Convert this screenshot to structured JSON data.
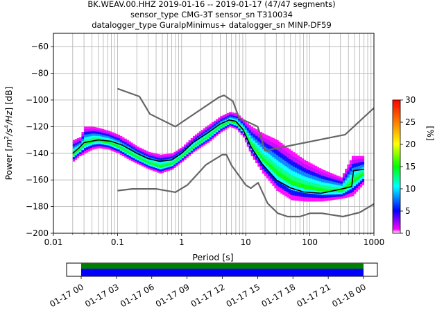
{
  "chart_data": {
    "type": "heatmap",
    "title_lines": [
      "BK.WEAV.00.HHZ   2019-01-16 -- 2019-01-17  (47/47 segments)",
      "sensor_type CMG-3T sensor_sn T310034",
      "datalogger_type GuralpMinimus+ datalogger_sn MINP-DF59"
    ],
    "xlabel": "Period [s]",
    "ylabel_prefix": "Power [",
    "ylabel_unit_m": "m",
    "ylabel_unit_exp2": "2",
    "ylabel_unit_s": "/s",
    "ylabel_unit_exp4": "4",
    "ylabel_unit_hz": "/Hz",
    "ylabel_suffix": "] [dB]",
    "x_scale": "log",
    "xlim": [
      0.01,
      1000
    ],
    "ylim": [
      -200,
      -50
    ],
    "x_ticks": [
      {
        "value": 0.01,
        "label": "0.01"
      },
      {
        "value": 0.1,
        "label": "0.1"
      },
      {
        "value": 1,
        "label": "1"
      },
      {
        "value": 10,
        "label": "10"
      },
      {
        "value": 100,
        "label": "100"
      },
      {
        "value": 1000,
        "label": "1000"
      }
    ],
    "y_ticks": [
      {
        "value": -60,
        "label": "−60"
      },
      {
        "value": -80,
        "label": "−80"
      },
      {
        "value": -100,
        "label": "−100"
      },
      {
        "value": -120,
        "label": "−120"
      },
      {
        "value": -140,
        "label": "−140"
      },
      {
        "value": -160,
        "label": "−160"
      },
      {
        "value": -180,
        "label": "−180"
      },
      {
        "value": -200,
        "label": "−200"
      }
    ],
    "grid": true,
    "colorbar": {
      "label": "[%]",
      "min": 0,
      "max": 30,
      "ticks": [
        {
          "value": 0,
          "label": "0"
        },
        {
          "value": 5,
          "label": "5"
        },
        {
          "value": 10,
          "label": "10"
        },
        {
          "value": 15,
          "label": "15"
        },
        {
          "value": 20,
          "label": "20"
        },
        {
          "value": 25,
          "label": "25"
        },
        {
          "value": 30,
          "label": "30"
        }
      ]
    },
    "high_noise_model": [
      [
        0.1,
        -91.5
      ],
      [
        0.22,
        -97.4
      ],
      [
        0.32,
        -110.5
      ],
      [
        0.8,
        -120
      ],
      [
        3.8,
        -98
      ],
      [
        4.6,
        -96.5
      ],
      [
        6.3,
        -101
      ],
      [
        7.9,
        -113.5
      ],
      [
        15.4,
        -120
      ],
      [
        20,
        -138
      ],
      [
        354.8,
        -126
      ],
      [
        1000,
        -106
      ]
    ],
    "low_noise_model": [
      [
        0.1,
        -168
      ],
      [
        0.17,
        -166.7
      ],
      [
        0.4,
        -166.7
      ],
      [
        0.8,
        -169.2
      ],
      [
        1.24,
        -163.7
      ],
      [
        2.4,
        -148.6
      ],
      [
        4.3,
        -141.1
      ],
      [
        5,
        -141.1
      ],
      [
        6,
        -149
      ],
      [
        10,
        -163.8
      ],
      [
        12,
        -166.2
      ],
      [
        15.6,
        -162.1
      ],
      [
        21.9,
        -177.5
      ],
      [
        31.6,
        -185
      ],
      [
        45,
        -187.5
      ],
      [
        70,
        -187.5
      ],
      [
        101,
        -185
      ],
      [
        154,
        -185
      ],
      [
        328,
        -187.5
      ],
      [
        600,
        -184.4
      ],
      [
        1000,
        -178
      ]
    ],
    "mean_curve": [
      [
        0.02,
        -140
      ],
      [
        0.025,
        -136
      ],
      [
        0.03,
        -132
      ],
      [
        0.05,
        -130
      ],
      [
        0.08,
        -131
      ],
      [
        0.12,
        -134
      ],
      [
        0.2,
        -140
      ],
      [
        0.3,
        -144
      ],
      [
        0.45,
        -146
      ],
      [
        0.7,
        -145
      ],
      [
        1,
        -140
      ],
      [
        1.5,
        -132
      ],
      [
        2.5,
        -125
      ],
      [
        4,
        -118
      ],
      [
        5.5,
        -115
      ],
      [
        7,
        -116
      ],
      [
        9,
        -122
      ],
      [
        12,
        -135
      ],
      [
        18,
        -148
      ],
      [
        30,
        -160
      ],
      [
        50,
        -166
      ],
      [
        80,
        -169
      ],
      [
        150,
        -170
      ],
      [
        300,
        -167
      ],
      [
        450,
        -165
      ],
      [
        480,
        -153
      ],
      [
        700,
        -152
      ]
    ],
    "density_columns": [
      {
        "period": 0.02,
        "min": -146,
        "max": -130
      },
      {
        "period": 0.025,
        "min": -142,
        "max": -128
      },
      {
        "period": 0.03,
        "min": -140,
        "max": -120
      },
      {
        "period": 0.04,
        "min": -137,
        "max": -120
      },
      {
        "period": 0.05,
        "min": -136,
        "max": -121
      },
      {
        "period": 0.07,
        "min": -137,
        "max": -123
      },
      {
        "period": 0.1,
        "min": -140,
        "max": -126
      },
      {
        "period": 0.15,
        "min": -145,
        "max": -131
      },
      {
        "period": 0.2,
        "min": -148,
        "max": -135
      },
      {
        "period": 0.3,
        "min": -152,
        "max": -139
      },
      {
        "period": 0.45,
        "min": -155,
        "max": -141
      },
      {
        "period": 0.7,
        "min": -152,
        "max": -140
      },
      {
        "period": 1,
        "min": -146,
        "max": -135
      },
      {
        "period": 1.5,
        "min": -139,
        "max": -127
      },
      {
        "period": 2.5,
        "min": -132,
        "max": -119
      },
      {
        "period": 4,
        "min": -124,
        "max": -112
      },
      {
        "period": 5.5,
        "min": -120,
        "max": -109
      },
      {
        "period": 7,
        "min": -122,
        "max": -110
      },
      {
        "period": 9,
        "min": -128,
        "max": -115
      },
      {
        "period": 12,
        "min": -142,
        "max": -120
      },
      {
        "period": 18,
        "min": -155,
        "max": -125
      },
      {
        "period": 30,
        "min": -168,
        "max": -130
      },
      {
        "period": 50,
        "min": -175,
        "max": -138
      },
      {
        "period": 80,
        "min": -176,
        "max": -145
      },
      {
        "period": 150,
        "min": -176,
        "max": -152
      },
      {
        "period": 300,
        "min": -174,
        "max": -158
      },
      {
        "period": 450,
        "min": -172,
        "max": -142
      },
      {
        "period": 700,
        "min": -162,
        "max": -142
      }
    ],
    "timeline": {
      "start": "2019-01-16 21:50",
      "end": "2019-01-18 02:00",
      "covered_start": "01-17 00",
      "covered_end": "01-18 00",
      "ticks": [
        "01-17 00",
        "01-17 03",
        "01-17 06",
        "01-17 09",
        "01-17 12",
        "01-17 15",
        "01-17 18",
        "01-17 21",
        "01-18 00"
      ],
      "band_colors": [
        "#008000",
        "#0000ff"
      ]
    },
    "colors": {
      "noise_model": "#666666",
      "mean_curve": "#000000",
      "grid": "#b0b0b0"
    }
  }
}
